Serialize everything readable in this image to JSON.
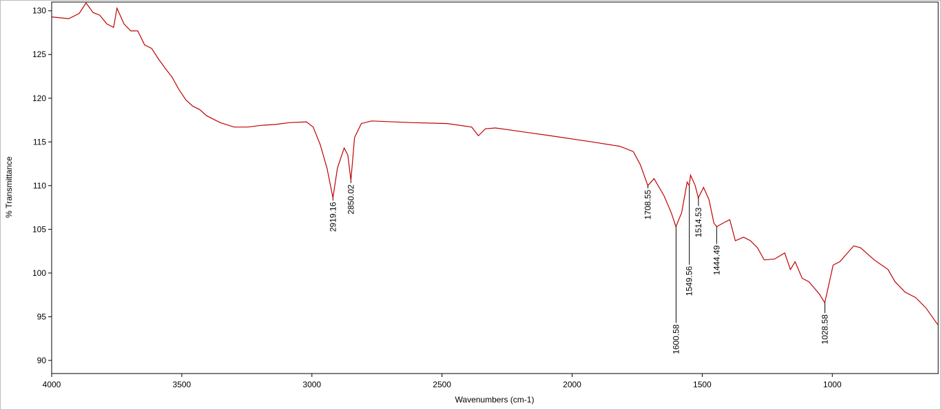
{
  "chart_data": {
    "type": "line",
    "xlabel": "Wavenumbers (cm-1)",
    "ylabel": "% Transmittance",
    "x": [
      4000,
      3934,
      3894,
      3868,
      3841,
      3815,
      3788,
      3762,
      3749,
      3722,
      3696,
      3669,
      3643,
      3616,
      3590,
      3563,
      3537,
      3511,
      3484,
      3458,
      3431,
      3405,
      3352,
      3299,
      3246,
      3193,
      3140,
      3087,
      3021,
      2995,
      2968,
      2942,
      2919,
      2902,
      2876,
      2862,
      2850,
      2836,
      2810,
      2770,
      2611,
      2479,
      2386,
      2360,
      2333,
      2294,
      2082,
      1923,
      1817,
      1765,
      1738,
      1709,
      1685,
      1646,
      1619,
      1601,
      1579,
      1558,
      1550,
      1545,
      1527,
      1515,
      1495,
      1474,
      1455,
      1444,
      1421,
      1394,
      1373,
      1341,
      1315,
      1288,
      1262,
      1222,
      1183,
      1161,
      1143,
      1116,
      1090,
      1050,
      1029,
      997,
      971,
      918,
      892,
      839,
      786,
      759,
      720,
      680,
      640,
      595
    ],
    "series": [
      {
        "color": "#c00000",
        "values": [
          129.3,
          129.1,
          129.7,
          130.9,
          129.8,
          129.5,
          128.5,
          128.1,
          130.3,
          128.5,
          127.7,
          127.7,
          126.1,
          125.7,
          124.5,
          123.4,
          122.4,
          121.0,
          119.8,
          119.1,
          118.7,
          118.0,
          117.2,
          116.7,
          116.7,
          116.9,
          117.0,
          117.2,
          117.3,
          116.7,
          114.7,
          112.0,
          108.6,
          112.0,
          114.3,
          113.5,
          110.6,
          115.5,
          117.1,
          117.4,
          117.2,
          117.1,
          116.7,
          115.7,
          116.5,
          116.6,
          115.7,
          115.0,
          114.5,
          113.9,
          112.4,
          110.0,
          110.8,
          108.8,
          106.9,
          105.3,
          106.9,
          110.4,
          110.0,
          111.2,
          110.0,
          108.6,
          109.8,
          108.4,
          105.7,
          105.3,
          105.7,
          106.1,
          103.7,
          104.1,
          103.7,
          102.9,
          101.5,
          101.6,
          102.3,
          100.4,
          101.3,
          99.4,
          99.0,
          97.6,
          96.6,
          100.9,
          101.3,
          103.1,
          102.9,
          101.5,
          100.4,
          99.0,
          97.8,
          97.2,
          96.0,
          94.1
        ]
      }
    ],
    "peaks": [
      {
        "x": 2919.16,
        "y": 108.6
      },
      {
        "x": 2850.02,
        "y": 110.6
      },
      {
        "x": 1708.55,
        "y": 110.0
      },
      {
        "x": 1600.58,
        "y": 105.3
      },
      {
        "x": 1549.56,
        "y": 110.0
      },
      {
        "x": 1514.53,
        "y": 108.6
      },
      {
        "x": 1444.49,
        "y": 105.3
      },
      {
        "x": 1028.58,
        "y": 96.6
      }
    ],
    "xlim": [
      4000,
      593
    ],
    "ylim": [
      88.5,
      131
    ],
    "xticks": [
      4000,
      3500,
      3000,
      2500,
      2000,
      1500,
      1000
    ],
    "yticks": [
      90,
      95,
      100,
      105,
      110,
      115,
      120,
      125,
      130
    ]
  }
}
